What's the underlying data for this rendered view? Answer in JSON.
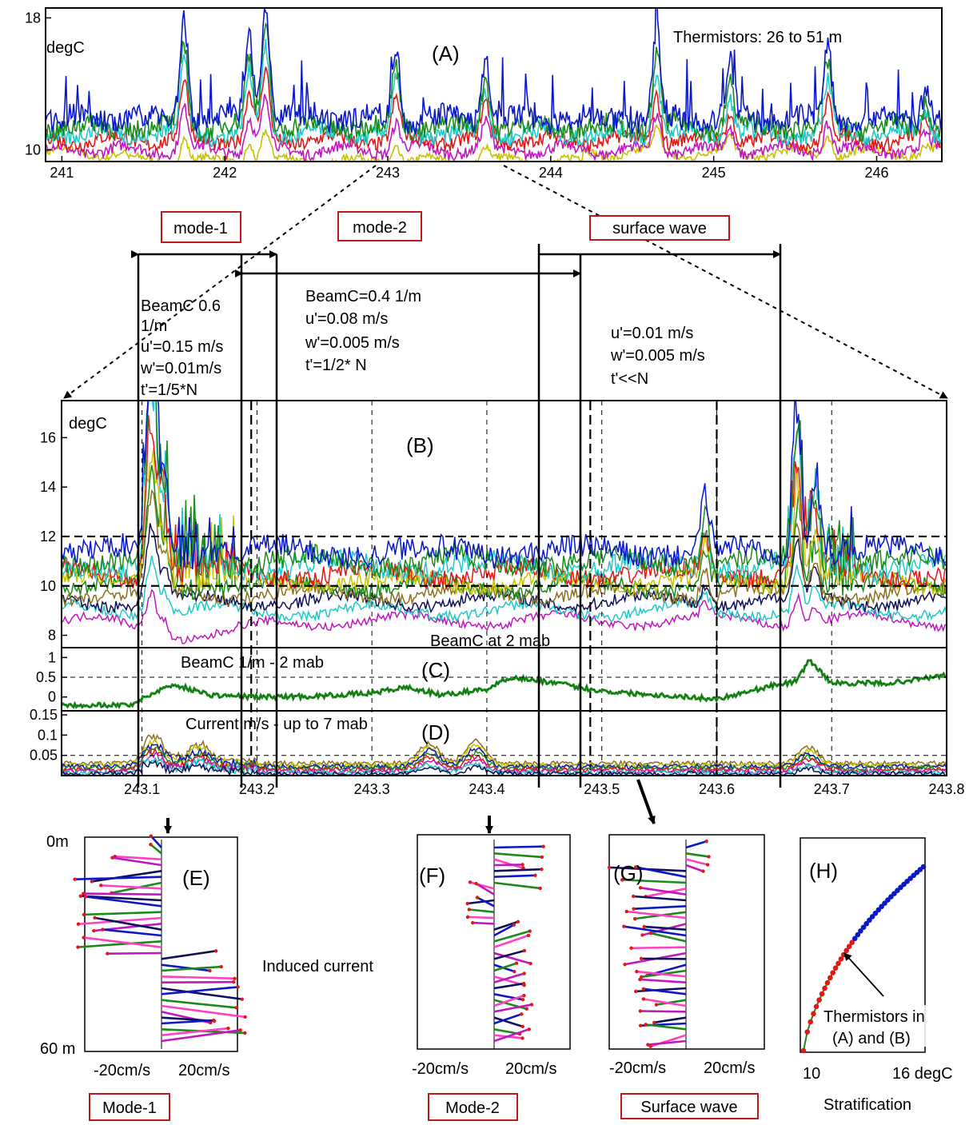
{
  "colors": {
    "blue": "#0a18c8",
    "green": "#1a8a1a",
    "red": "#e01818",
    "cyan": "#20c8c8",
    "magenta": "#c018c0",
    "yellow": "#c8c000",
    "olive": "#8a7020",
    "navy": "#10105a",
    "pink": "#ff40c0",
    "box": "#c01818"
  },
  "chart_data": [
    {
      "id": "A",
      "type": "line",
      "panel_label": "(A)",
      "ylabel": "degC",
      "note": "Thermistors: 26 to 51 m",
      "xlim": [
        240.9,
        246.4
      ],
      "ylim": [
        9.3,
        18.6
      ],
      "xticks": [
        "241",
        "242",
        "243",
        "244",
        "245",
        "246"
      ],
      "xtick_values": [
        241,
        242,
        243,
        244,
        245,
        246
      ],
      "yticks": [
        "18",
        "10"
      ],
      "ytick_values": [
        18,
        10
      ],
      "series_colors": [
        "yellow",
        "magenta",
        "red",
        "cyan",
        "green",
        "blue"
      ],
      "series_base": [
        9.8,
        10.0,
        10.6,
        11.0,
        11.4,
        11.9
      ],
      "events": [
        [
          241.75,
          17.2
        ],
        [
          242.25,
          18.4
        ],
        [
          242.15,
          16.0
        ],
        [
          243.05,
          15.3
        ],
        [
          243.6,
          14.8
        ],
        [
          244.65,
          16.2
        ],
        [
          245.1,
          14.2
        ],
        [
          245.7,
          15.4
        ],
        [
          246.3,
          12.8
        ]
      ]
    },
    {
      "id": "B",
      "type": "line",
      "panel_label": "(B)",
      "ylabel": "degC",
      "xlim": [
        243.03,
        243.8
      ],
      "ylim": [
        7.5,
        17.5
      ],
      "yticks": [
        "16",
        "14",
        "12",
        "10",
        "8"
      ],
      "ytick_values": [
        16,
        14,
        12,
        10,
        8
      ],
      "hlines": [
        12,
        10
      ],
      "series_colors": [
        "magenta",
        "cyan",
        "navy",
        "olive",
        "green",
        "yellow",
        "red",
        "cyan",
        "green",
        "blue"
      ],
      "series_base": [
        8.6,
        9.0,
        9.4,
        9.7,
        10.0,
        10.2,
        10.5,
        10.8,
        11.0,
        11.4
      ],
      "events": [
        [
          243.11,
          17.3
        ],
        [
          243.105,
          14.8
        ],
        [
          243.12,
          14.2
        ],
        [
          243.67,
          16.8
        ],
        [
          243.59,
          13.2
        ],
        [
          243.685,
          14.0
        ]
      ]
    },
    {
      "id": "C",
      "type": "line",
      "panel_label": "(C)",
      "annotation_top": "BeamC at 2 mab",
      "annotation": "BeamC 1/m  - 2 mab",
      "xlim": [
        243.03,
        243.8
      ],
      "ylim": [
        -0.35,
        1.25
      ],
      "yticks": [
        "1",
        "0.5",
        "0"
      ],
      "ytick_values": [
        1,
        0.5,
        0
      ],
      "hlines": [
        0.5
      ],
      "series_colors": [
        "green"
      ],
      "x": [
        243.03,
        243.09,
        243.1,
        243.12,
        243.13,
        243.16,
        243.2,
        243.25,
        243.3,
        243.33,
        243.36,
        243.4,
        243.42,
        243.45,
        243.5,
        243.55,
        243.6,
        243.65,
        243.67,
        243.68,
        243.7,
        243.75,
        243.8
      ],
      "y": [
        -0.2,
        -0.2,
        -0.05,
        0.25,
        0.3,
        0.05,
        0.0,
        0.02,
        0.1,
        0.25,
        0.05,
        0.2,
        0.5,
        0.4,
        0.15,
        0.05,
        -0.05,
        0.3,
        0.4,
        0.95,
        0.35,
        0.35,
        0.55
      ]
    },
    {
      "id": "D",
      "type": "line",
      "panel_label": "(D)",
      "annotation": "Current m/s - up to 7 mab",
      "xlim": [
        243.03,
        243.8
      ],
      "xticks": [
        "243.1",
        "243.2",
        "243.3",
        "243.4",
        "243.5",
        "243.6",
        "243.7",
        "243.8"
      ],
      "xtick_values": [
        243.1,
        243.2,
        243.3,
        243.4,
        243.5,
        243.6,
        243.7,
        243.8
      ],
      "ylim": [
        0,
        0.16
      ],
      "yticks": [
        "0.15",
        "0.1",
        "0.05"
      ],
      "ytick_values": [
        0.15,
        0.1,
        0.05
      ],
      "hlines": [
        0.05
      ],
      "series_colors": [
        "olive",
        "yellow",
        "blue",
        "green",
        "red",
        "magenta",
        "cyan",
        "navy"
      ],
      "series_base": [
        0.03,
        0.026,
        0.022,
        0.018,
        0.014,
        0.01,
        0.007,
        0.004
      ],
      "events": [
        [
          243.11,
          0.06
        ],
        [
          243.15,
          0.04
        ],
        [
          243.35,
          0.05
        ],
        [
          243.39,
          0.055
        ],
        [
          243.68,
          0.04
        ]
      ]
    }
  ],
  "interval_boxes": [
    {
      "label": "mode-1"
    },
    {
      "label": "mode-2"
    },
    {
      "label": "surface wave"
    }
  ],
  "interval_notes": [
    [
      "BeamC 0.6",
      "1/m",
      "u'=0.15 m/s",
      "w'=0.01m/s",
      "t'=1/5*N"
    ],
    [
      "BeamC=0.4 1/m",
      "u'=0.08 m/s",
      "w'=0.005 m/s",
      "t'=1/2* N"
    ],
    [
      "u'=0.01 m/s",
      "w'=0.005 m/s",
      "t'<<N"
    ]
  ],
  "profiles": [
    {
      "label": "(E)",
      "xlabel_left": "-20cm/s",
      "xlabel_right": "20cm/s",
      "depth_top": "0m",
      "depth_bottom": "60 m",
      "box_label": "Mode-1"
    },
    {
      "label": "(F)",
      "xlabel_left": "-20cm/s",
      "xlabel_right": "20cm/s",
      "box_label": "Mode-2"
    },
    {
      "label": "(G)",
      "xlabel_left": "-20cm/s",
      "xlabel_right": "20cm/s",
      "box_label": "Surface wave"
    }
  ],
  "induced_current_label": "Induced current",
  "stratification": {
    "label": "(H)",
    "xtick_left": "10",
    "xtick_right": "16 degC",
    "caption": "Stratification",
    "annotation": [
      "Thermistors in",
      "(A) and (B)"
    ]
  }
}
